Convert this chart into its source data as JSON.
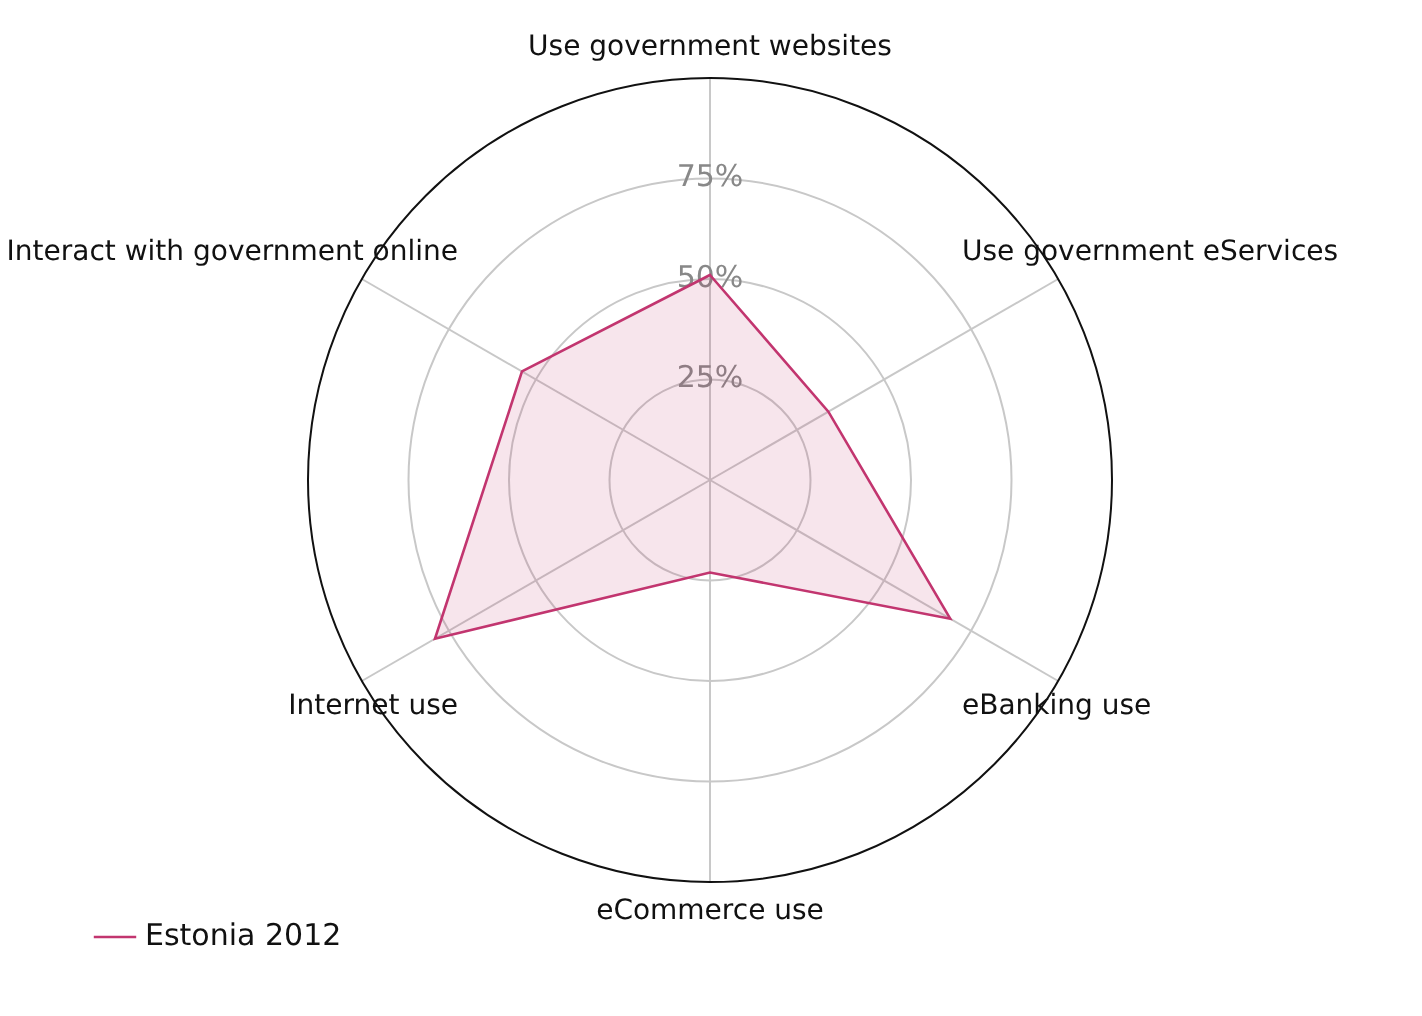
{
  "chart_data": {
    "type": "radar",
    "categories": [
      "Use government websites",
      "Use government eServices",
      "eBanking use",
      "eCommerce use",
      "Internet use",
      "Interact with government online"
    ],
    "series": [
      {
        "name": "Estonia 2012",
        "color": "#c2356f",
        "values": [
          51,
          34,
          69,
          23,
          79,
          54
        ]
      }
    ],
    "ylim": [
      0,
      100
    ],
    "yticks": [
      {
        "value": 25,
        "label": "25%"
      },
      {
        "value": 50,
        "label": "50%"
      },
      {
        "value": 75,
        "label": "75%"
      }
    ],
    "grid": true,
    "legend": "bottom left"
  }
}
